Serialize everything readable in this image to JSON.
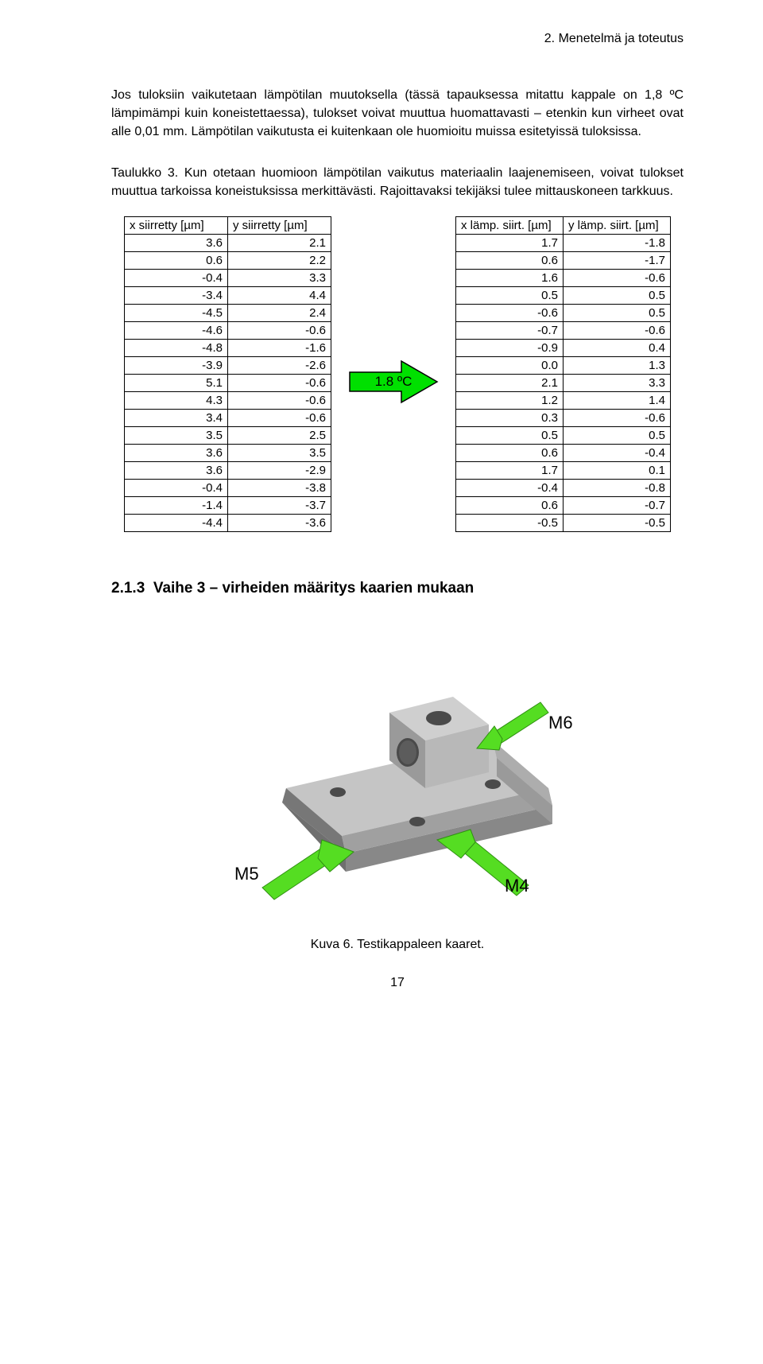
{
  "header": {
    "chapter": "2. Menetelmä ja toteutus"
  },
  "paragraph": "Jos tuloksiin vaikutetaan lämpötilan muutoksella (tässä tapauksessa mitattu kappale on 1,8 ºC lämpimämpi kuin koneistettaessa), tulokset voivat muuttua huomattavasti – etenkin kun virheet ovat alle 0,01 mm. Lämpötilan vaikutusta ei kuitenkaan ole huomioitu muissa esitetyissä tuloksissa.",
  "table_caption": "Taulukko 3. Kun otetaan huomioon lämpötilan vaikutus materiaalin laajenemiseen, voivat tulokset muuttua tarkoissa koneistuksissa merkittävästi. Rajoittavaksi tekijäksi tulee mittauskoneen tarkkuus.",
  "tables": {
    "left": {
      "headers": [
        "x siirretty [µm]",
        "y siirretty [µm]"
      ],
      "rows": [
        [
          "3.6",
          "2.1"
        ],
        [
          "0.6",
          "2.2"
        ],
        [
          "-0.4",
          "3.3"
        ],
        [
          "-3.4",
          "4.4"
        ],
        [
          "-4.5",
          "2.4"
        ],
        [
          "-4.6",
          "-0.6"
        ],
        [
          "-4.8",
          "-1.6"
        ],
        [
          "-3.9",
          "-2.6"
        ],
        [
          "5.1",
          "-0.6"
        ],
        [
          "4.3",
          "-0.6"
        ],
        [
          "3.4",
          "-0.6"
        ],
        [
          "3.5",
          "2.5"
        ],
        [
          "3.6",
          "3.5"
        ],
        [
          "3.6",
          "-2.9"
        ],
        [
          "-0.4",
          "-3.8"
        ],
        [
          "-1.4",
          "-3.7"
        ],
        [
          "-4.4",
          "-3.6"
        ]
      ]
    },
    "right": {
      "headers": [
        "x lämp. siirt. [µm]",
        "y lämp. siirt. [µm]"
      ],
      "rows": [
        [
          "1.7",
          "-1.8"
        ],
        [
          "0.6",
          "-1.7"
        ],
        [
          "1.6",
          "-0.6"
        ],
        [
          "0.5",
          "0.5"
        ],
        [
          "-0.6",
          "0.5"
        ],
        [
          "-0.7",
          "-0.6"
        ],
        [
          "-0.9",
          "0.4"
        ],
        [
          "0.0",
          "1.3"
        ],
        [
          "2.1",
          "3.3"
        ],
        [
          "1.2",
          "1.4"
        ],
        [
          "0.3",
          "-0.6"
        ],
        [
          "0.5",
          "0.5"
        ],
        [
          "0.6",
          "-0.4"
        ],
        [
          "1.7",
          "0.1"
        ],
        [
          "-0.4",
          "-0.8"
        ],
        [
          "0.6",
          "-0.7"
        ],
        [
          "-0.5",
          "-0.5"
        ]
      ]
    },
    "arrow_label": "1.8 ºC",
    "arrow_fill": "#00e000",
    "arrow_stroke": "#000000"
  },
  "section": {
    "num": "2.1.3",
    "title": "Vaihe 3 – virheiden määritys kaarien mukaan"
  },
  "figure": {
    "labels": {
      "m4": "M4",
      "m5": "M5",
      "m6": "M6"
    },
    "caption": "Kuva 6. Testikappaleen kaaret.",
    "colors": {
      "block_top": "#cfcfcf",
      "block_front": "#9a9a9a",
      "block_side": "#b8b8b8",
      "base_top": "#c5c5c5",
      "base_front": "#888888",
      "base_side": "#adadad",
      "chamfer": "#777777",
      "hole": "#4a4a4a",
      "arrow_fill": "#55dd22",
      "arrow_stroke": "#2f8f12",
      "bg": "#ffffff"
    }
  },
  "page_number": "17"
}
